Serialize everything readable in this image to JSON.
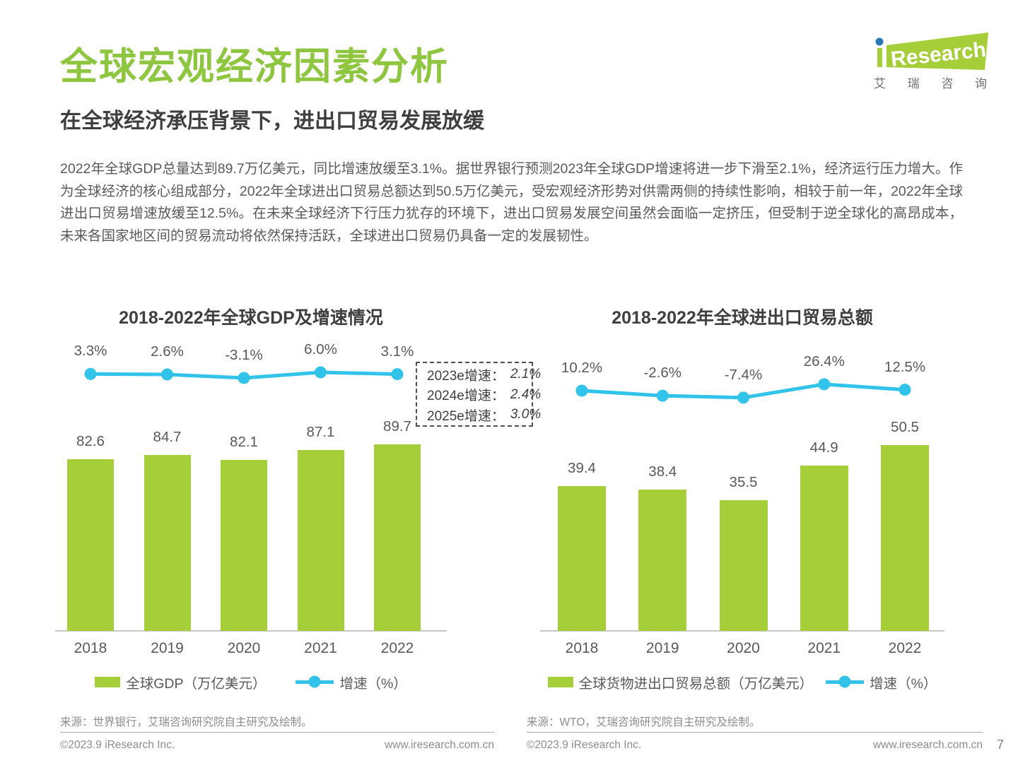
{
  "page": {
    "title": "全球宏观经济因素分析",
    "subtitle": "在全球经济承压背景下，进出口贸易发展放缓",
    "paragraph": "2022年全球GDP总量达到89.7万亿美元，同比增速放缓至3.1%。据世界银行预测2023年全球GDP增速将进一步下滑至2.1%，经济运行压力增大。作为全球经济的核心组成部分，2022年全球进出口贸易总额达到50.5万亿美元，受宏观经济形势对供需两侧的持续性影响，相较于前一年，2022年全球进出口贸易增速放缓至12.5%。在未来全球经济下行压力犹存的环境下，进出口贸易发展空间虽然会面临一定挤压，但受制于逆全球化的高昂成本，未来各国家地区间的贸易流动将依然保持活跃，全球进出口贸易仍具备一定的发展韧性。",
    "page_number": "7"
  },
  "logo": {
    "brand_i": "i",
    "brand_text": "Research",
    "chars": [
      "艾",
      "瑞",
      "咨",
      "询"
    ]
  },
  "colors": {
    "title_green": "#8ec63f",
    "bar_green": "#a6ce39",
    "line_cyan": "#31c3ea",
    "logo_dot_blue": "#2878b8"
  },
  "chart_data": [
    {
      "type": "bar+line",
      "title": "2018-2022年全球GDP及增速情况",
      "categories": [
        "2018",
        "2019",
        "2020",
        "2021",
        "2022"
      ],
      "series": [
        {
          "name": "全球GDP（万亿美元）",
          "type": "bar",
          "values": [
            82.6,
            84.7,
            82.1,
            87.1,
            89.7
          ]
        },
        {
          "name": "增速（%）",
          "type": "line",
          "values": [
            3.3,
            2.6,
            -3.1,
            6.0,
            3.1
          ],
          "labels": [
            "3.3%",
            "2.6%",
            "-3.1%",
            "6.0%",
            "3.1%"
          ]
        }
      ],
      "annotation": [
        {
          "label": "2023e增速：",
          "value": "2.1%"
        },
        {
          "label": "2024e增速：",
          "value": "2.4%"
        },
        {
          "label": "2025e增速：",
          "value": "3.0%"
        }
      ],
      "source": "来源：世界银行，艾瑞咨询研究院自主研究及绘制。",
      "legend_position": "bottom",
      "grid": false
    },
    {
      "type": "bar+line",
      "title": "2018-2022年全球进出口贸易总额",
      "categories": [
        "2018",
        "2019",
        "2020",
        "2021",
        "2022"
      ],
      "series": [
        {
          "name": "全球货物进出口贸易总额（万亿美元）",
          "type": "bar",
          "values": [
            39.4,
            38.4,
            35.5,
            44.9,
            50.5
          ]
        },
        {
          "name": "增速（%）",
          "type": "line",
          "values": [
            10.2,
            -2.6,
            -7.4,
            26.4,
            12.5
          ],
          "labels": [
            "10.2%",
            "-2.6%",
            "-7.4%",
            "26.4%",
            "12.5%"
          ]
        }
      ],
      "annotation": [],
      "source": "来源：WTO，艾瑞咨询研究院自主研究及绘制。",
      "legend_position": "bottom",
      "grid": false
    }
  ],
  "footer": {
    "left": {
      "copyright": "©2023.9 iResearch Inc.",
      "website": "www.iresearch.com.cn"
    },
    "right": {
      "copyright": "©2023.9 iResearch Inc.",
      "website": "www.iresearch.com.cn"
    }
  }
}
